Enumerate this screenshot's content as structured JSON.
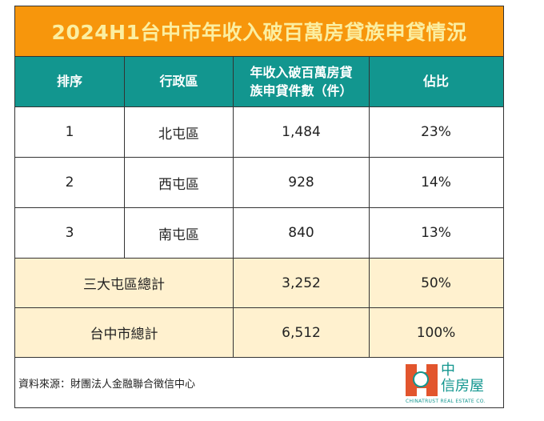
{
  "title": "2024H1台中市年收入破百萬房貸族申貸情況",
  "colors": {
    "title_bg": "#f7960c",
    "title_text": "#fbeea0",
    "header_bg": "#12968f",
    "total_bg": "#fff1cf",
    "logo_red": "#e2552d",
    "logo_teal": "#12968f"
  },
  "header": {
    "rank": "排序",
    "district": "行政區",
    "count_line1": "年收入破百萬房貸",
    "count_line2": "族申貸件數（件）",
    "share": "佔比"
  },
  "rows": [
    {
      "rank": "1",
      "district": "北屯區",
      "count": "1,484",
      "share": "23%"
    },
    {
      "rank": "2",
      "district": "西屯區",
      "count": "928",
      "share": "14%"
    },
    {
      "rank": "3",
      "district": "南屯區",
      "count": "840",
      "share": "13%"
    }
  ],
  "totals": [
    {
      "label": "三大屯區總計",
      "count": "3,252",
      "share": "50%"
    },
    {
      "label": "台中市總計",
      "count": "6,512",
      "share": "100%"
    }
  ],
  "footer": {
    "source": "資料來源：財團法人金融聯合徵信中心",
    "logo_line1": "中",
    "logo_line2": "信房屋",
    "logo_en": "CHINATRUST REAL ESTATE CO."
  },
  "chart_data": {
    "type": "table",
    "title": "2024H1台中市年收入破百萬房貸族申貸情況",
    "columns": [
      "排序",
      "行政區",
      "年收入破百萬房貸族申貸件數（件）",
      "佔比"
    ],
    "rows": [
      [
        "1",
        "北屯區",
        1484,
        "23%"
      ],
      [
        "2",
        "西屯區",
        928,
        "14%"
      ],
      [
        "3",
        "南屯區",
        840,
        "13%"
      ],
      [
        "",
        "三大屯區總計",
        3252,
        "50%"
      ],
      [
        "",
        "台中市總計",
        6512,
        "100%"
      ]
    ],
    "source": "財團法人金融聯合徵信中心"
  }
}
